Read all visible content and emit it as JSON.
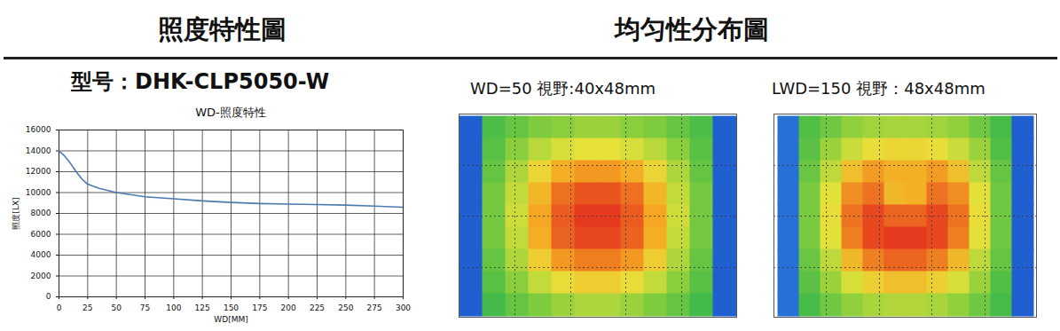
{
  "section_titles": [
    "照度特性圖",
    "均匀性分布圖"
  ],
  "chart_data": [
    {
      "type": "line",
      "title": "型号：DHK-CLP5050-W",
      "subtitle": "WD-照度特性",
      "x_label": "WD[MM]",
      "y_label": "照度[LX]",
      "x": [
        0,
        5,
        10,
        15,
        20,
        25,
        35,
        50,
        75,
        100,
        125,
        150,
        175,
        200,
        225,
        250,
        275,
        300
      ],
      "values": [
        14000,
        13500,
        12800,
        12000,
        11300,
        10800,
        10400,
        10000,
        9600,
        9400,
        9200,
        9050,
        8950,
        8900,
        8850,
        8800,
        8700,
        8600
      ],
      "color": "#4a7ab0",
      "xlim": [
        0,
        300
      ],
      "xticks": [
        0,
        25,
        50,
        75,
        100,
        125,
        150,
        175,
        200,
        225,
        250,
        275,
        300
      ],
      "ylim": [
        0,
        16000
      ],
      "yticks": [
        0,
        2000,
        4000,
        6000,
        8000,
        10000,
        12000,
        14000,
        16000
      ],
      "grid": true
    },
    {
      "type": "heatmap",
      "title": "WD=50 視野:40x48mm",
      "grid": true,
      "tick_labels": false,
      "cells": [
        [
          5,
          40,
          45,
          50,
          52,
          55,
          55,
          52,
          50,
          45,
          40,
          5
        ],
        [
          5,
          42,
          52,
          60,
          65,
          68,
          68,
          65,
          60,
          52,
          42,
          5
        ],
        [
          5,
          45,
          58,
          72,
          82,
          86,
          86,
          82,
          72,
          58,
          45,
          5
        ],
        [
          5,
          48,
          62,
          80,
          92,
          96,
          96,
          92,
          80,
          62,
          48,
          5
        ],
        [
          5,
          48,
          64,
          84,
          95,
          100,
          100,
          95,
          84,
          64,
          48,
          5
        ],
        [
          5,
          48,
          62,
          82,
          94,
          98,
          98,
          94,
          82,
          62,
          48,
          5
        ],
        [
          5,
          45,
          58,
          74,
          86,
          90,
          90,
          86,
          74,
          58,
          45,
          5
        ],
        [
          5,
          42,
          52,
          62,
          70,
          74,
          74,
          70,
          62,
          52,
          42,
          5
        ],
        [
          5,
          38,
          45,
          50,
          55,
          58,
          58,
          55,
          50,
          45,
          38,
          5
        ]
      ]
    },
    {
      "type": "heatmap",
      "title": "LWD=150 視野：48x48mm",
      "grid": true,
      "tick_labels": false,
      "cells": [
        [
          8,
          40,
          46,
          52,
          55,
          56,
          56,
          55,
          52,
          46,
          38,
          5
        ],
        [
          8,
          42,
          54,
          62,
          68,
          70,
          70,
          68,
          62,
          54,
          40,
          5
        ],
        [
          8,
          45,
          60,
          76,
          84,
          80,
          80,
          84,
          76,
          60,
          44,
          5
        ],
        [
          8,
          48,
          66,
          86,
          90,
          78,
          80,
          90,
          86,
          66,
          46,
          5
        ],
        [
          8,
          48,
          68,
          90,
          96,
          92,
          92,
          96,
          90,
          68,
          46,
          5
        ],
        [
          8,
          48,
          66,
          88,
          96,
          98,
          98,
          96,
          88,
          66,
          46,
          5
        ],
        [
          8,
          45,
          60,
          78,
          88,
          92,
          92,
          88,
          78,
          60,
          44,
          5
        ],
        [
          8,
          42,
          54,
          64,
          72,
          76,
          76,
          72,
          64,
          54,
          40,
          5
        ],
        [
          8,
          38,
          46,
          52,
          56,
          58,
          58,
          56,
          52,
          46,
          38,
          5
        ]
      ]
    }
  ]
}
